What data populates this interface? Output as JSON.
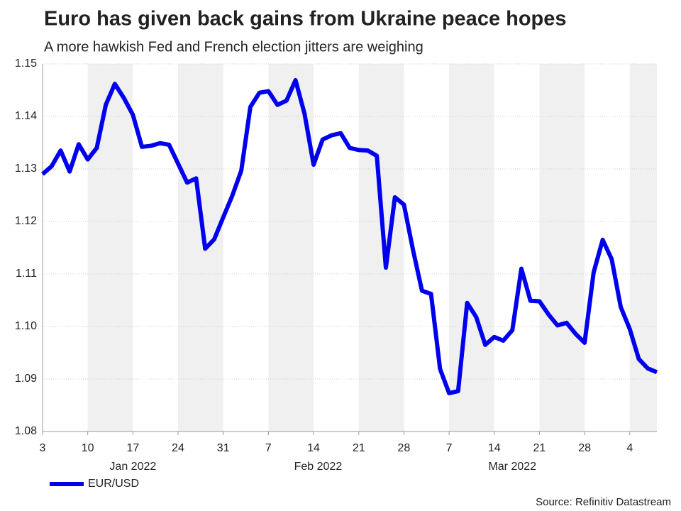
{
  "chart_data": {
    "type": "line",
    "title": "Euro has given back gains from Ukraine peace hopes",
    "subtitle": "A more hawkish Fed and French election jitters are weighing",
    "source": "Source: Refinitiv Datastream",
    "categories": [
      "2022-01-03",
      "2022-01-04",
      "2022-01-05",
      "2022-01-06",
      "2022-01-07",
      "2022-01-10",
      "2022-01-11",
      "2022-01-12",
      "2022-01-13",
      "2022-01-14",
      "2022-01-17",
      "2022-01-18",
      "2022-01-19",
      "2022-01-20",
      "2022-01-21",
      "2022-01-24",
      "2022-01-25",
      "2022-01-26",
      "2022-01-27",
      "2022-01-28",
      "2022-01-31",
      "2022-02-01",
      "2022-02-02",
      "2022-02-03",
      "2022-02-04",
      "2022-02-07",
      "2022-02-08",
      "2022-02-09",
      "2022-02-10",
      "2022-02-11",
      "2022-02-14",
      "2022-02-15",
      "2022-02-16",
      "2022-02-17",
      "2022-02-18",
      "2022-02-21",
      "2022-02-22",
      "2022-02-23",
      "2022-02-24",
      "2022-02-25",
      "2022-02-28",
      "2022-03-01",
      "2022-03-02",
      "2022-03-03",
      "2022-03-04",
      "2022-03-07",
      "2022-03-08",
      "2022-03-09",
      "2022-03-10",
      "2022-03-11",
      "2022-03-14",
      "2022-03-15",
      "2022-03-16",
      "2022-03-17",
      "2022-03-18",
      "2022-03-21",
      "2022-03-22",
      "2022-03-23",
      "2022-03-24",
      "2022-03-25",
      "2022-03-28",
      "2022-03-29",
      "2022-03-30",
      "2022-03-31",
      "2022-04-01",
      "2022-04-04",
      "2022-04-05",
      "2022-04-06",
      "2022-04-07"
    ],
    "series": [
      {
        "name": "EUR/USD",
        "color": "#0000ee",
        "values": [
          1.129,
          1.1305,
          1.1335,
          1.1295,
          1.1347,
          1.1318,
          1.134,
          1.1422,
          1.1462,
          1.1435,
          1.1403,
          1.1342,
          1.1344,
          1.1349,
          1.1346,
          1.131,
          1.1274,
          1.1282,
          1.1148,
          1.1166,
          1.1208,
          1.1249,
          1.1297,
          1.1418,
          1.1445,
          1.1448,
          1.1422,
          1.143,
          1.1469,
          1.1405,
          1.1308,
          1.1356,
          1.1364,
          1.1368,
          1.134,
          1.1336,
          1.1335,
          1.1325,
          1.1112,
          1.1246,
          1.1232,
          1.1146,
          1.1068,
          1.1062,
          1.0919,
          1.0873,
          1.0877,
          1.1045,
          1.1018,
          1.0965,
          1.098,
          1.0973,
          1.0993,
          1.111,
          1.1049,
          1.1048,
          1.1023,
          1.1002,
          1.1007,
          1.0986,
          1.0969,
          1.1103,
          1.1165,
          1.1128,
          1.1037,
          1.0995,
          1.0938,
          1.092,
          1.0913
        ]
      }
    ],
    "xticks": [
      {
        "value": "2022-01-03",
        "label": "3"
      },
      {
        "value": "2022-01-10",
        "label": "10"
      },
      {
        "value": "2022-01-17",
        "label": "17"
      },
      {
        "value": "2022-01-24",
        "label": "24"
      },
      {
        "value": "2022-01-31",
        "label": "31"
      },
      {
        "value": "2022-02-07",
        "label": "7"
      },
      {
        "value": "2022-02-14",
        "label": "14"
      },
      {
        "value": "2022-02-21",
        "label": "21"
      },
      {
        "value": "2022-02-28",
        "label": "28"
      },
      {
        "value": "2022-03-07",
        "label": "7"
      },
      {
        "value": "2022-03-14",
        "label": "14"
      },
      {
        "value": "2022-03-21",
        "label": "21"
      },
      {
        "value": "2022-03-28",
        "label": "28"
      },
      {
        "value": "2022-04-04",
        "label": "4"
      }
    ],
    "month_labels": [
      {
        "value": "2022-01",
        "label": "Jan 2022"
      },
      {
        "value": "2022-02",
        "label": "Feb 2022"
      },
      {
        "value": "2022-03",
        "label": "Mar 2022"
      }
    ],
    "ylim": [
      1.08,
      1.15
    ],
    "yticks": [
      1.08,
      1.09,
      {
        "value": 1.1,
        "label": "1.10"
      },
      1.11,
      1.12,
      1.13,
      1.14,
      1.15
    ],
    "grid": true
  }
}
